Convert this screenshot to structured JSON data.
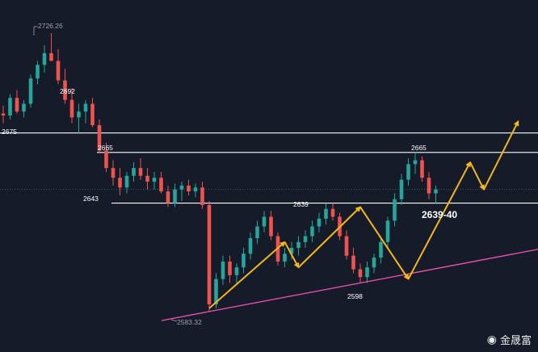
{
  "chart_data": {
    "type": "candlestick",
    "ylim": [
      2570,
      2735
    ],
    "colors": {
      "up": "#26a69a",
      "down": "#ef5350",
      "background": "#151b29",
      "trend": "#e64fa8",
      "arrow": "#f5b81c",
      "level": "#ffffff"
    },
    "candles": [
      [
        2685,
        2689,
        2680,
        2684
      ],
      [
        2684,
        2695,
        2682,
        2693
      ],
      [
        2693,
        2697,
        2685,
        2686
      ],
      [
        2686,
        2692,
        2683,
        2690
      ],
      [
        2690,
        2705,
        2688,
        2703
      ],
      [
        2703,
        2712,
        2700,
        2710
      ],
      [
        2710,
        2720,
        2706,
        2716
      ],
      [
        2716,
        2726.26,
        2712,
        2712
      ],
      [
        2712,
        2718,
        2700,
        2702
      ],
      [
        2702,
        2708,
        2690,
        2692
      ],
      [
        2692,
        2698,
        2680,
        2683
      ],
      [
        2683,
        2690,
        2675,
        2686
      ],
      [
        2686,
        2692,
        2680,
        2690
      ],
      [
        2690,
        2693,
        2678,
        2679
      ],
      [
        2679,
        2682,
        2665,
        2666
      ],
      [
        2666,
        2670,
        2655,
        2657
      ],
      [
        2657,
        2661,
        2648,
        2652
      ],
      [
        2652,
        2657,
        2643,
        2647
      ],
      [
        2647,
        2655,
        2644,
        2653
      ],
      [
        2653,
        2660,
        2650,
        2657
      ],
      [
        2657,
        2662,
        2651,
        2653
      ],
      [
        2653,
        2657,
        2646,
        2650
      ],
      [
        2650,
        2655,
        2646,
        2652
      ],
      [
        2652,
        2655,
        2644,
        2645
      ],
      [
        2645,
        2648,
        2637,
        2639
      ],
      [
        2639,
        2649,
        2637,
        2646
      ],
      [
        2646,
        2650,
        2640,
        2648
      ],
      [
        2648,
        2651,
        2643,
        2645
      ],
      [
        2645,
        2649,
        2642,
        2647
      ],
      [
        2647,
        2650,
        2636,
        2638
      ],
      [
        2638,
        2640,
        2583.32,
        2587
      ],
      [
        2587,
        2603,
        2585,
        2600
      ],
      [
        2600,
        2612,
        2597,
        2609
      ],
      [
        2609,
        2612,
        2598,
        2602
      ],
      [
        2602,
        2608,
        2597,
        2606
      ],
      [
        2606,
        2616,
        2603,
        2613
      ],
      [
        2613,
        2624,
        2610,
        2621
      ],
      [
        2621,
        2630,
        2618,
        2627
      ],
      [
        2627,
        2635,
        2624,
        2632
      ],
      [
        2632,
        2635,
        2620,
        2622
      ],
      [
        2622,
        2624,
        2607,
        2609
      ],
      [
        2609,
        2616,
        2606,
        2613
      ],
      [
        2613,
        2619,
        2610,
        2616
      ],
      [
        2616,
        2622,
        2612,
        2619
      ],
      [
        2619,
        2625,
        2616,
        2622
      ],
      [
        2622,
        2630,
        2619,
        2627
      ],
      [
        2627,
        2634,
        2624,
        2631
      ],
      [
        2631,
        2639,
        2628,
        2636
      ],
      [
        2636,
        2639,
        2630,
        2632
      ],
      [
        2632,
        2634,
        2620,
        2622
      ],
      [
        2622,
        2625,
        2610,
        2612
      ],
      [
        2612,
        2616,
        2603,
        2605
      ],
      [
        2605,
        2608,
        2598,
        2601
      ],
      [
        2601,
        2609,
        2598,
        2606
      ],
      [
        2606,
        2613,
        2603,
        2611
      ],
      [
        2611,
        2621,
        2608,
        2619
      ],
      [
        2619,
        2632,
        2616,
        2630
      ],
      [
        2630,
        2644,
        2627,
        2641
      ],
      [
        2641,
        2654,
        2638,
        2651
      ],
      [
        2651,
        2662,
        2648,
        2659
      ],
      [
        2659,
        2665,
        2654,
        2661
      ],
      [
        2661,
        2663,
        2650,
        2652
      ],
      [
        2652,
        2655,
        2641,
        2644
      ],
      [
        2644,
        2648,
        2639,
        2646
      ]
    ],
    "levels": [
      2675,
      2665,
      2639
    ],
    "annotations": [
      {
        "text": "2726.26",
        "kind": "high"
      },
      {
        "text": "2692",
        "kind": "point"
      },
      {
        "text": "2675",
        "kind": "point"
      },
      {
        "text": "2665",
        "kind": "point"
      },
      {
        "text": "2643",
        "kind": "point"
      },
      {
        "text": "2639",
        "kind": "point"
      },
      {
        "text": "2665",
        "kind": "point"
      },
      {
        "text": "2598",
        "kind": "point"
      },
      {
        "text": "2583.32",
        "kind": "low"
      },
      {
        "text": "2639-40",
        "kind": "target"
      }
    ],
    "trendline": {
      "from": [
        30,
        2583.32
      ],
      "to": [
        64,
        2606
      ]
    },
    "arrows": [
      [
        [
          30,
          2585
        ],
        [
          41,
          2619
        ]
      ],
      [
        [
          41,
          2619
        ],
        [
          43,
          2606
        ]
      ],
      [
        [
          43,
          2606
        ],
        [
          52,
          2637
        ]
      ],
      [
        [
          52,
          2637
        ],
        [
          59,
          2600
        ]
      ],
      [
        [
          59,
          2600
        ],
        [
          68,
          2660
        ]
      ],
      [
        [
          68,
          2660
        ],
        [
          70,
          2646
        ]
      ],
      [
        [
          70,
          2646
        ],
        [
          75,
          2681
        ]
      ]
    ]
  },
  "watermark": {
    "logo": "sina-weibo-icon",
    "text": "金晟富"
  }
}
